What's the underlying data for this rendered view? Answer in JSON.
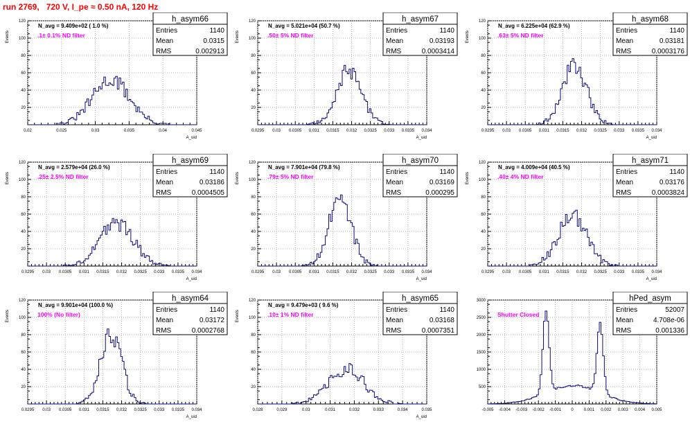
{
  "run_title": "run 2769,   720 V, I_pe ≈ 0.50 nA, 120 Hz",
  "colors": {
    "title": "#ff0000",
    "hist_line": "#0a0a7a",
    "annotation": "#ff00ff",
    "grid": "#b0b0b0"
  },
  "chart_data": [
    {
      "type": "histogram",
      "name": "h_asym66",
      "navg": "N_avg = 9.409e+02 ( 1.0 %)",
      "filter": ".1± 0.1% ND filter",
      "stats": [
        {
          "k": "Entries",
          "v": "1140"
        },
        {
          "k": "Mean",
          "v": "0.0315"
        },
        {
          "k": "RMS",
          "v": "0.002913"
        }
      ],
      "ylabel": "Events",
      "xlabel": "A_uid",
      "xlim": [
        0.0185,
        0.045
      ],
      "ylim": [
        0,
        120
      ],
      "xticks": [
        "0.02",
        "0.025",
        "0.03",
        "0.035",
        "0.04",
        "0.045"
      ],
      "yticks": [
        "20",
        "40",
        "60",
        "80",
        "100",
        "120"
      ],
      "peaks": [
        {
          "mu": 0.03155,
          "sigma": 0.0029,
          "amp": 52
        }
      ]
    },
    {
      "type": "histogram",
      "name": "h_asym67",
      "navg": "N_avg = 5.021e+04 (50.7 %)",
      "filter": ".50± 5% ND filter",
      "stats": [
        {
          "k": "Entries",
          "v": "1140"
        },
        {
          "k": "Mean",
          "v": "0.03193"
        },
        {
          "k": "RMS",
          "v": "0.0003414"
        }
      ],
      "ylabel": "Events",
      "xlabel": "A_uid",
      "xlim": [
        0.0295,
        0.034
      ],
      "ylim": [
        0,
        120
      ],
      "xticks": [
        "0.0295",
        "0.03",
        "0.0305",
        "0.031",
        "0.0315",
        "0.032",
        "0.0325",
        "0.033",
        "0.0335",
        "0.034"
      ],
      "yticks": [
        "20",
        "40",
        "60",
        "80",
        "100",
        "120"
      ],
      "peaks": [
        {
          "mu": 0.03193,
          "sigma": 0.00034,
          "amp": 62
        }
      ]
    },
    {
      "type": "histogram",
      "name": "h_asym68",
      "navg": "N_avg = 6.225e+04 (62.9 %)",
      "filter": ".63± 5% ND filter",
      "stats": [
        {
          "k": "Entries",
          "v": "1140"
        },
        {
          "k": "Mean",
          "v": "0.03181"
        },
        {
          "k": "RMS",
          "v": "0.0003176"
        }
      ],
      "ylabel": "Events",
      "xlabel": "A_uid",
      "xlim": [
        0.0295,
        0.034
      ],
      "ylim": [
        0,
        120
      ],
      "xticks": [
        "0.0295",
        "0.03",
        "0.0305",
        "0.031",
        "0.0315",
        "0.032",
        "0.0325",
        "0.033",
        "0.0335",
        "0.034"
      ],
      "yticks": [
        "20",
        "40",
        "60",
        "80",
        "100",
        "120"
      ],
      "peaks": [
        {
          "mu": 0.03181,
          "sigma": 0.00032,
          "amp": 70
        }
      ]
    },
    {
      "type": "histogram",
      "name": "h_asym69",
      "navg": "N_avg = 2.579e+04 (26.0 %)",
      "filter": ".25± 2.5% ND filter",
      "stats": [
        {
          "k": "Entries",
          "v": "1140"
        },
        {
          "k": "Mean",
          "v": "0.03186"
        },
        {
          "k": "RMS",
          "v": "0.0004505"
        }
      ],
      "ylabel": "Events",
      "xlabel": "A_uid",
      "xlim": [
        0.0295,
        0.034
      ],
      "ylim": [
        0,
        120
      ],
      "xticks": [
        "0.0295",
        "0.03",
        "0.0305",
        "0.031",
        "0.0315",
        "0.032",
        "0.0325",
        "0.033",
        "0.0335",
        "0.034"
      ],
      "yticks": [
        "20",
        "40",
        "60",
        "80",
        "100",
        "120"
      ],
      "peaks": [
        {
          "mu": 0.03186,
          "sigma": 0.00045,
          "amp": 50
        }
      ]
    },
    {
      "type": "histogram",
      "name": "h_asym70",
      "navg": "N_avg = 7.901e+04 (79.8 %)",
      "filter": ".79± 5% ND filter",
      "stats": [
        {
          "k": "Entries",
          "v": "1140"
        },
        {
          "k": "Mean",
          "v": "0.03169"
        },
        {
          "k": "RMS",
          "v": "0.000295"
        }
      ],
      "ylabel": "Events",
      "xlabel": "A_uid",
      "xlim": [
        0.0295,
        0.034
      ],
      "ylim": [
        0,
        120
      ],
      "xticks": [
        "0.0295",
        "0.03",
        "0.0305",
        "0.031",
        "0.0315",
        "0.032",
        "0.0325",
        "0.033",
        "0.0335",
        "0.034"
      ],
      "yticks": [
        "20",
        "40",
        "60",
        "80",
        "100",
        "120"
      ],
      "peaks": [
        {
          "mu": 0.03169,
          "sigma": 0.0003,
          "amp": 78
        }
      ]
    },
    {
      "type": "histogram",
      "name": "h_asym71",
      "navg": "N_avg = 4.009e+04 (40.5 %)",
      "filter": ".40± 4% ND filter",
      "stats": [
        {
          "k": "Entries",
          "v": "1140"
        },
        {
          "k": "Mean",
          "v": "0.03176"
        },
        {
          "k": "RMS",
          "v": "0.0003824"
        }
      ],
      "ylabel": "Events",
      "xlabel": "A_uid",
      "xlim": [
        0.0295,
        0.034
      ],
      "ylim": [
        0,
        120
      ],
      "xticks": [
        "0.0295",
        "0.03",
        "0.0305",
        "0.031",
        "0.0315",
        "0.032",
        "0.0325",
        "0.033",
        "0.0335",
        "0.034"
      ],
      "yticks": [
        "20",
        "40",
        "60",
        "80",
        "100",
        "120"
      ],
      "peaks": [
        {
          "mu": 0.03176,
          "sigma": 0.00038,
          "amp": 60
        }
      ]
    },
    {
      "type": "histogram",
      "name": "h_asym64",
      "navg": "N_avg = 9.901e+04 (100.0 %)",
      "filter": "100% (No filter)",
      "stats": [
        {
          "k": "Entries",
          "v": "1140"
        },
        {
          "k": "Mean",
          "v": "0.03172"
        },
        {
          "k": "RMS",
          "v": "0.0002768"
        }
      ],
      "ylabel": "Events",
      "xlabel": "A_uid",
      "xlim": [
        0.0295,
        0.034
      ],
      "ylim": [
        0,
        120
      ],
      "xticks": [
        "0.0295",
        "0.03",
        "0.0305",
        "0.031",
        "0.0315",
        "0.032",
        "0.0325",
        "0.033",
        "0.0335",
        "0.034"
      ],
      "yticks": [
        "20",
        "40",
        "60",
        "80",
        "100",
        "120"
      ],
      "peaks": [
        {
          "mu": 0.03172,
          "sigma": 0.00028,
          "amp": 80
        }
      ]
    },
    {
      "type": "histogram",
      "name": "h_asym65",
      "navg": "N_avg = 9.479e+03 ( 9.6 %)",
      "filter": ".10± 1% ND filter",
      "stats": [
        {
          "k": "Entries",
          "v": "1140"
        },
        {
          "k": "Mean",
          "v": "0.03168"
        },
        {
          "k": "RMS",
          "v": "0.0007351"
        }
      ],
      "ylabel": "Events",
      "xlabel": "A_uid",
      "xlim": [
        0.028,
        0.035
      ],
      "ylim": [
        0,
        120
      ],
      "xticks": [
        "0.028",
        "0.029",
        "0.03",
        "0.031",
        "0.032",
        "0.033",
        "0.034",
        "0.035"
      ],
      "yticks": [
        "20",
        "40",
        "60",
        "80",
        "100",
        "120"
      ],
      "peaks": [
        {
          "mu": 0.03168,
          "sigma": 0.00074,
          "amp": 40
        }
      ]
    },
    {
      "type": "histogram",
      "name": "hPed_asym",
      "navg": "",
      "filter": "Shutter Closed",
      "stats": [
        {
          "k": "Entries",
          "v": "52007"
        },
        {
          "k": "Mean",
          "v": "4.708e-06"
        },
        {
          "k": "RMS",
          "v": "0.001336"
        }
      ],
      "ylabel": "",
      "xlabel": "",
      "xlim": [
        -0.005,
        0.005
      ],
      "ylim": [
        0,
        3500
      ],
      "xticks": [
        "-0.005",
        "-0.004",
        "-0.003",
        "-0.002",
        "-0.001",
        "0",
        "0.001",
        "0.002",
        "0.003",
        "0.004",
        "0.005"
      ],
      "yticks": [
        "500",
        "1000",
        "1500",
        "2000",
        "2500",
        "3000"
      ],
      "peaks": [
        {
          "mu": -0.00155,
          "sigma": 0.00018,
          "amp": 2800
        },
        {
          "mu": 0.00165,
          "sigma": 0.00018,
          "amp": 2350
        },
        {
          "mu": 5e-05,
          "sigma": 0.0016,
          "amp": 620
        }
      ]
    }
  ]
}
